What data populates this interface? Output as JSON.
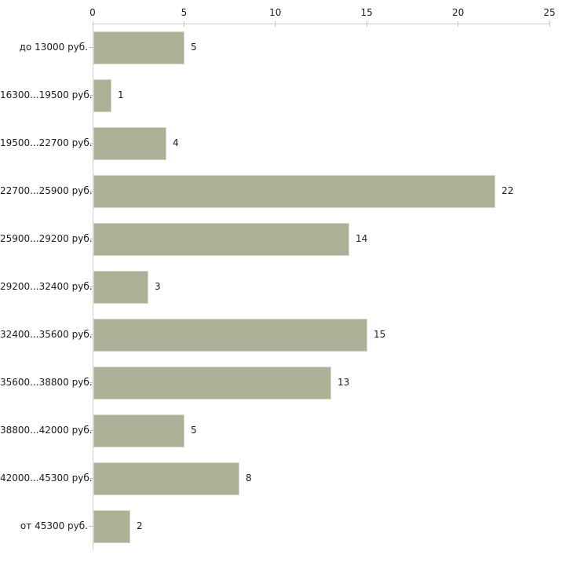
{
  "chart_data": {
    "type": "bar",
    "orientation": "horizontal",
    "title": "",
    "xlabel": "",
    "ylabel": "",
    "categories": [
      "до 13000 руб.",
      "16300...19500 руб.",
      "19500...22700 руб.",
      "22700...25900 руб.",
      "25900...29200 руб.",
      "29200...32400 руб.",
      "32400...35600 руб.",
      "35600...38800 руб.",
      "38800...42000 руб.",
      "42000...45300 руб.",
      "от 45300 руб."
    ],
    "values": [
      5,
      1,
      4,
      22,
      14,
      3,
      15,
      13,
      5,
      8,
      2
    ],
    "xlim": [
      0,
      25
    ],
    "xticks": [
      0,
      5,
      10,
      15,
      20,
      25
    ],
    "xtick_labels": [
      "0",
      "5",
      "10",
      "15",
      "20",
      "25"
    ],
    "grid": false,
    "legend": "none",
    "value_labels": "outside-end",
    "colors": {
      "bar_fill": "#abb196",
      "bar_border": "#d6d9c8",
      "axis_line": "#cccccc",
      "tick_mark": "#c6c6ab",
      "text": "#1a1a1a",
      "background": "#ffffff"
    }
  }
}
